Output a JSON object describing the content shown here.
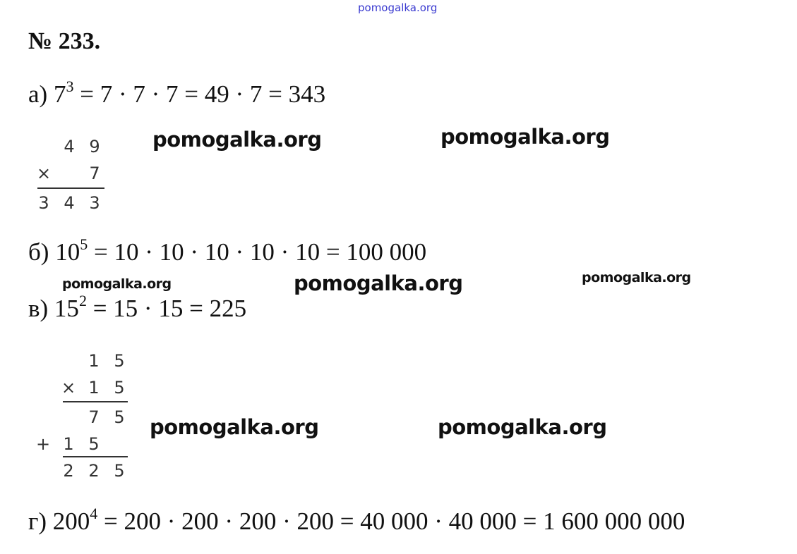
{
  "watermark_top": "pomogalka.org",
  "watermark": "pomogalka.org",
  "title": "№ 233.",
  "a": {
    "prefix": "а) 7",
    "exp": "3",
    "rest": " = 7 · 7 · 7 = 49 · 7 = 343"
  },
  "col_a": {
    "r1": [
      "",
      "4",
      "9"
    ],
    "r2": [
      "×",
      "",
      "7"
    ],
    "r3": [
      "3",
      "4",
      "3"
    ]
  },
  "b": {
    "prefix": "б) 10",
    "exp": "5",
    "rest": " = 10 · 10 · 10 · 10 · 10 = 100 000"
  },
  "c": {
    "prefix": "в) 15",
    "exp": "2",
    "rest": " = 15 · 15 = 225"
  },
  "col_c": {
    "r1": [
      "",
      "",
      "1",
      "5"
    ],
    "r2": [
      "",
      "×",
      "1",
      "5"
    ],
    "r3": [
      "",
      "",
      "7",
      "5"
    ],
    "r4": [
      "+",
      "1",
      "5",
      ""
    ],
    "r5": [
      "",
      "2",
      "2",
      "5"
    ]
  },
  "d": {
    "prefix": "г) 200",
    "exp": "4",
    "rest": " = 200 · 200 · 200 · 200 = 40 000 · 40 000 = 1 600 000 000"
  }
}
